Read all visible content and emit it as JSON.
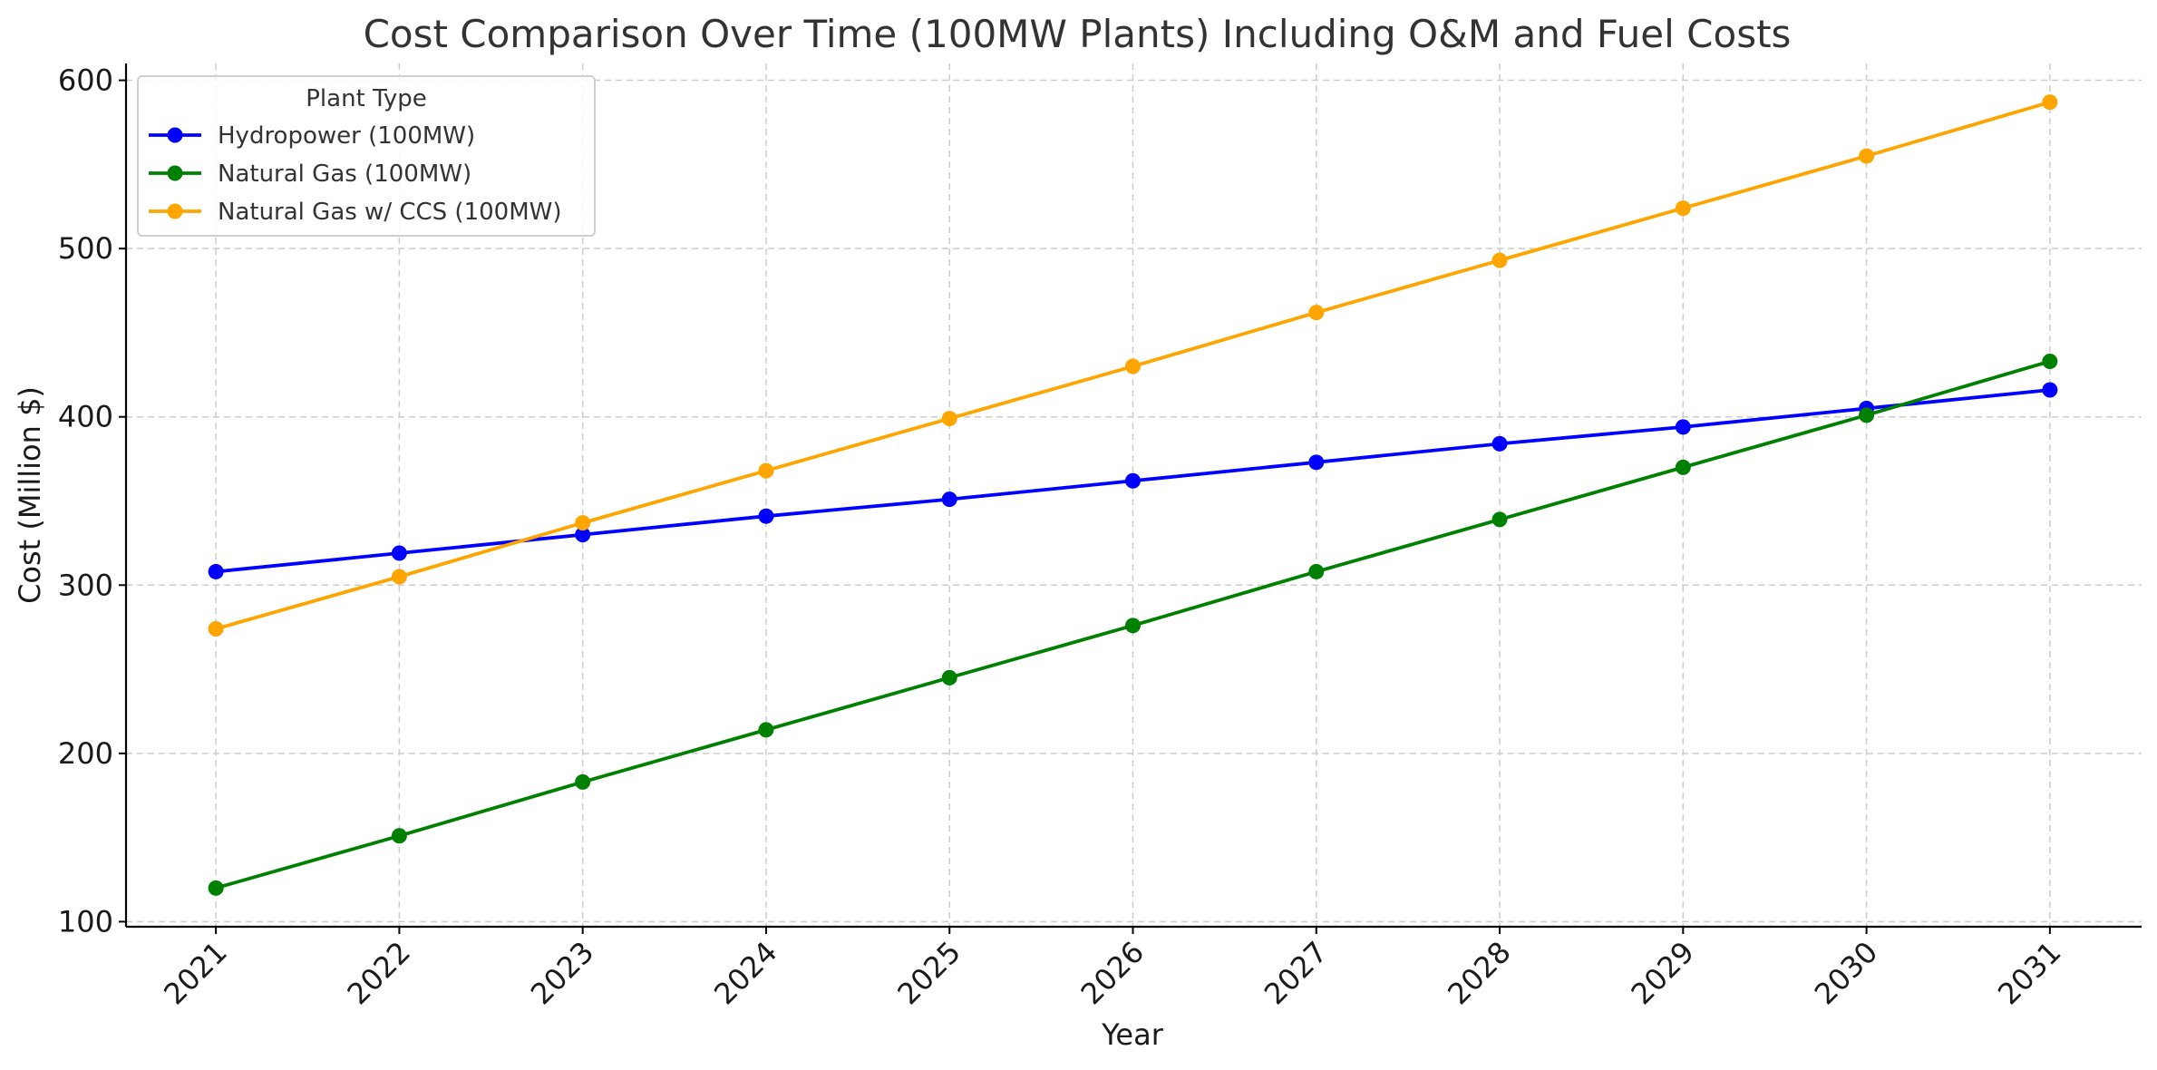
{
  "chart_data": {
    "type": "line",
    "title": "Cost Comparison Over Time (100MW Plants) Including O&M and Fuel Costs",
    "xlabel": "Year",
    "ylabel": "Cost (Million $)",
    "x": [
      2021,
      2022,
      2023,
      2024,
      2025,
      2026,
      2027,
      2028,
      2029,
      2030,
      2031
    ],
    "x_tick_labels": [
      "2021",
      "2022",
      "2023",
      "2024",
      "2025",
      "2026",
      "2027",
      "2028",
      "2029",
      "2030",
      "2031"
    ],
    "y_ticks": [
      100,
      200,
      300,
      400,
      500,
      600
    ],
    "y_tick_labels": [
      "100",
      "200",
      "300",
      "400",
      "500",
      "600"
    ],
    "xlim": [
      2020.51,
      2031.5
    ],
    "ylim": [
      97,
      610
    ],
    "grid": true,
    "legend": {
      "title": "Plant Type",
      "position": "top-left"
    },
    "series": [
      {
        "name": "Hydropower (100MW)",
        "color": "#0000ff",
        "values": [
          308,
          319,
          330,
          341,
          351,
          362,
          373,
          384,
          394,
          405,
          416
        ]
      },
      {
        "name": "Natural Gas (100MW)",
        "color": "#008000",
        "values": [
          120,
          151,
          183,
          214,
          245,
          276,
          308,
          339,
          370,
          401,
          433
        ]
      },
      {
        "name": "Natural Gas w/ CCS (100MW)",
        "color": "#ffa500",
        "values": [
          274,
          305,
          337,
          368,
          399,
          430,
          462,
          493,
          524,
          555,
          587
        ]
      }
    ]
  }
}
